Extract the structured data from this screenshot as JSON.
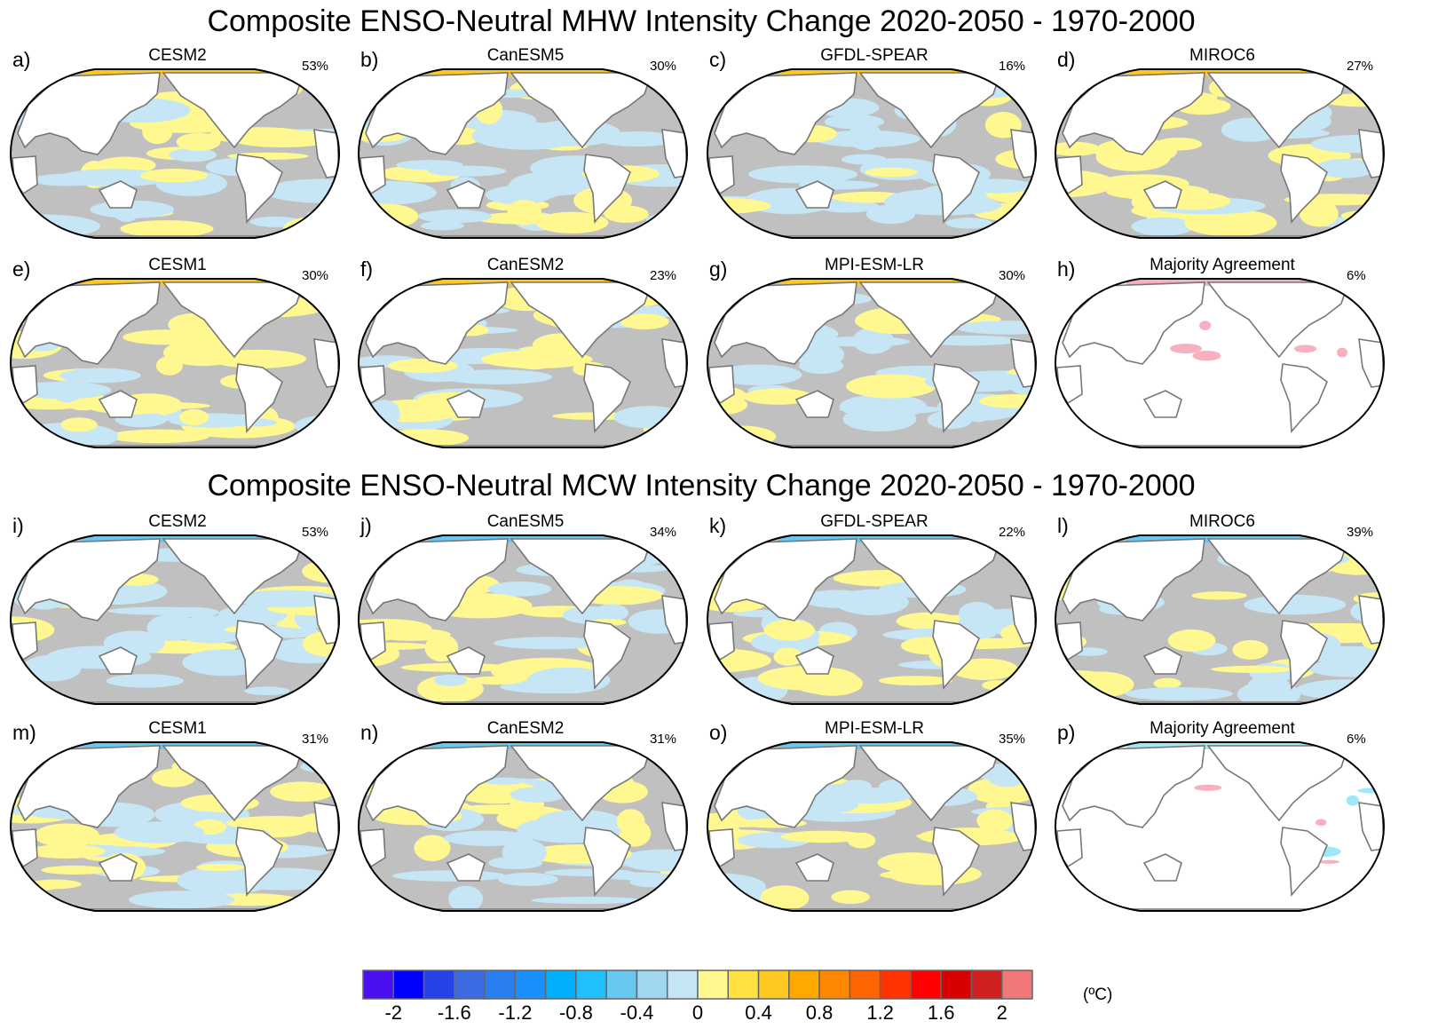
{
  "titles": {
    "mhw": "Composite ENSO-Neutral MHW Intensity Change 2020-2050 - 1970-2000",
    "mcw": "Composite ENSO-Neutral MCW Intensity Change 2020-2050 - 1970-2000"
  },
  "panels": [
    {
      "letter": "a)",
      "model": "CESM2",
      "percent": "53%",
      "type": "model",
      "warm": 0.55
    },
    {
      "letter": "b)",
      "model": "CanESM5",
      "percent": "30%",
      "type": "model",
      "warm": 0.4
    },
    {
      "letter": "c)",
      "model": "GFDL-SPEAR",
      "percent": "16%",
      "type": "model",
      "warm": 0.35
    },
    {
      "letter": "d)",
      "model": "MIROC6",
      "percent": "27%",
      "type": "model",
      "warm": 0.55
    },
    {
      "letter": "e)",
      "model": "CESM1",
      "percent": "30%",
      "type": "model",
      "warm": 0.6
    },
    {
      "letter": "f)",
      "model": "CanESM2",
      "percent": "23%",
      "type": "model",
      "warm": 0.5
    },
    {
      "letter": "g)",
      "model": "MPI-ESM-LR",
      "percent": "30%",
      "type": "model",
      "warm": 0.45
    },
    {
      "letter": "h)",
      "model": "Majority Agreement",
      "percent": "6%",
      "type": "agreement",
      "warm": 0.8
    },
    {
      "letter": "i)",
      "model": "CESM2",
      "percent": "53%",
      "type": "model",
      "warm": 0.4
    },
    {
      "letter": "j)",
      "model": "CanESM5",
      "percent": "34%",
      "type": "model",
      "warm": 0.5
    },
    {
      "letter": "k)",
      "model": "GFDL-SPEAR",
      "percent": "22%",
      "type": "model",
      "warm": 0.4
    },
    {
      "letter": "l)",
      "model": "MIROC6",
      "percent": "39%",
      "type": "model",
      "warm": 0.3
    },
    {
      "letter": "m)",
      "model": "CESM1",
      "percent": "31%",
      "type": "model",
      "warm": 0.5
    },
    {
      "letter": "n)",
      "model": "CanESM2",
      "percent": "31%",
      "type": "model",
      "warm": 0.55
    },
    {
      "letter": "o)",
      "model": "MPI-ESM-LR",
      "percent": "35%",
      "type": "model",
      "warm": 0.55
    },
    {
      "letter": "p)",
      "model": "Majority Agreement",
      "percent": "6%",
      "type": "agreement",
      "warm": 0.4
    }
  ],
  "chart_data": {
    "type": "heatmap",
    "title": "Composite ENSO-Neutral MHW / MCW Intensity Change 2020-2050 - 1970-2000",
    "colorbar": {
      "range": [
        -2.2,
        2.2
      ],
      "step": 0.2,
      "ticks": [
        "-2",
        "-1.6",
        "-1.2",
        "-0.8",
        "-0.4",
        "0",
        "0.4",
        "0.8",
        "1.2",
        "1.6",
        "2"
      ],
      "tick_values": [
        -2,
        -1.6,
        -1.2,
        -0.8,
        -0.4,
        0,
        0.4,
        0.8,
        1.2,
        1.6,
        2
      ],
      "unit": "(ºC)",
      "colors": [
        "#4b10f0",
        "#0000ff",
        "#2541e8",
        "#3c6ae0",
        "#2a7ff0",
        "#1a90ff",
        "#00b0ff",
        "#20c0ff",
        "#68c8f0",
        "#a0d6f0",
        "#c6e6f6",
        "#fff890",
        "#ffe240",
        "#ffc820",
        "#ffa800",
        "#ff8800",
        "#ff6400",
        "#ff3200",
        "#ff0000",
        "#d80000",
        "#d02020",
        "#f07878"
      ]
    },
    "insignificant_color": "#c0c0c0",
    "agreement_colors": {
      "warm": "#f8b0c0",
      "cool": "#a0e8f8"
    }
  }
}
